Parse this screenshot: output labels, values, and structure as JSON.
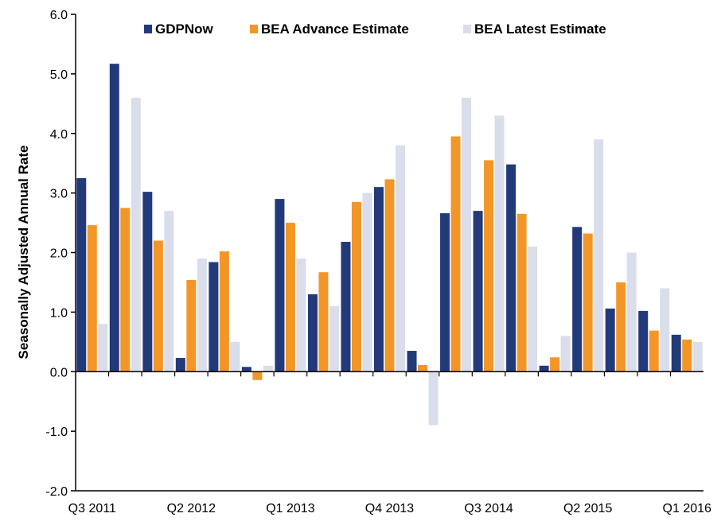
{
  "chart_data": {
    "type": "bar",
    "title": "",
    "xlabel": "",
    "ylabel": "Seasonally Adjusted Annual Rate",
    "ylim": [
      -2.0,
      6.0
    ],
    "ytick_step": 1.0,
    "yticks": [
      "-2.0",
      "-1.0",
      "0.0",
      "1.0",
      "2.0",
      "3.0",
      "4.0",
      "5.0",
      "6.0"
    ],
    "grid": false,
    "legend_position": "top",
    "categories": [
      "Q3 2011",
      "Q4 2011",
      "Q1 2012",
      "Q2 2012",
      "Q3 2012",
      "Q4 2012",
      "Q1 2013",
      "Q2 2013",
      "Q3 2013",
      "Q4 2013",
      "Q1 2014",
      "Q2 2014",
      "Q3 2014",
      "Q4 2014",
      "Q1 2015",
      "Q2 2015",
      "Q3 2015",
      "Q4 2015",
      "Q1 2016"
    ],
    "category_labels": [
      {
        "label": "Q3 2011",
        "at": 0
      },
      {
        "label": "Q2 2012",
        "at": 3
      },
      {
        "label": "Q1 2013",
        "at": 6
      },
      {
        "label": "Q4 2013",
        "at": 9
      },
      {
        "label": "Q3 2014",
        "at": 12
      },
      {
        "label": "Q2 2015",
        "at": 15
      },
      {
        "label": "Q1 2016",
        "at": 18
      }
    ],
    "series": [
      {
        "name": "GDPNow",
        "color": "#233a7a",
        "values": [
          3.25,
          5.17,
          3.02,
          0.23,
          1.84,
          0.08,
          2.9,
          1.3,
          2.18,
          3.1,
          0.35,
          2.66,
          2.7,
          3.48,
          0.1,
          2.43,
          1.06,
          1.02,
          0.62
        ]
      },
      {
        "name": "BEA Advance Estimate",
        "color": "#f39628",
        "values": [
          2.46,
          2.75,
          2.2,
          1.54,
          2.02,
          -0.14,
          2.5,
          1.67,
          2.85,
          3.23,
          0.11,
          3.95,
          3.55,
          2.65,
          0.24,
          2.32,
          1.5,
          0.69,
          0.54
        ]
      },
      {
        "name": "BEA Latest Estimate",
        "color": "#dadeea",
        "values": [
          0.8,
          4.6,
          2.7,
          1.9,
          0.5,
          0.1,
          1.9,
          1.1,
          3.0,
          3.8,
          -0.9,
          4.6,
          4.3,
          2.1,
          0.6,
          3.9,
          2.0,
          1.4,
          0.5
        ]
      }
    ]
  }
}
